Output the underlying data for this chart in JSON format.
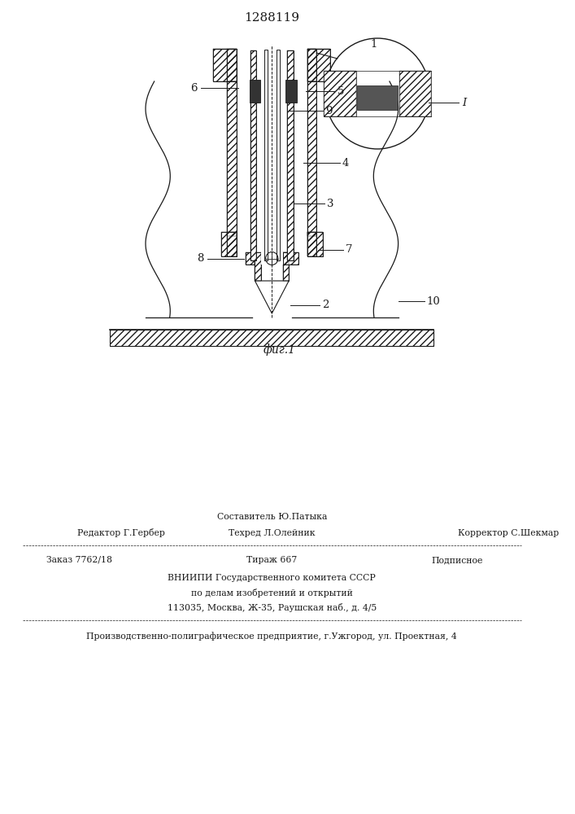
{
  "patent_number": "1288119",
  "figure_label": "фиг.1",
  "bg_color": "#ffffff",
  "line_color": "#1a1a1a",
  "footer": {
    "sestavitel": "Составитель Ю.Патыка",
    "redaktor": "Редактор Г.Гербер",
    "tehred": "Техред Л.Олейник",
    "korrektor": "Корректор С.Шекмар",
    "zakaz": "Заказ 7762/18",
    "tirazh": "Тираж 667",
    "podpisnoe": "Подписное",
    "vniipи": "ВНИИПИ Государственного комитета СССР",
    "po_delam": "по делам изобретений и открытий",
    "address": "113035, Москва, Ж-35, Раушская наб., д. 4/5",
    "proizv": "Производственно-полиграфическое предприятие, г.Ужгород, ул. Проектная, 4"
  }
}
